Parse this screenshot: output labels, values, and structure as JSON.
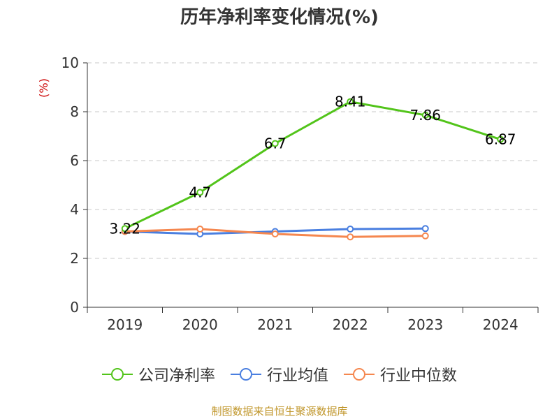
{
  "chart_data": {
    "type": "line",
    "title": "历年净利率变化情况(%)",
    "ylabel": "(%)",
    "xlabel": "",
    "ylim": [
      0,
      10
    ],
    "yticks": [
      0,
      2,
      4,
      6,
      8,
      10
    ],
    "categories": [
      "2019",
      "2020",
      "2021",
      "2022",
      "2023",
      "2024"
    ],
    "series": [
      {
        "name": "公司净利率",
        "color": "#52c41a",
        "values": [
          3.22,
          4.7,
          6.7,
          8.41,
          7.86,
          6.87
        ],
        "labels": [
          "3.22",
          "4.7",
          "6.7",
          "8.41",
          "7.86",
          "6.87"
        ]
      },
      {
        "name": "行业均值",
        "color": "#4a7fe0",
        "values": [
          3.1,
          3.0,
          3.1,
          3.2,
          3.22,
          null
        ]
      },
      {
        "name": "行业中位数",
        "color": "#f5874f",
        "values": [
          3.1,
          3.2,
          3.0,
          2.88,
          2.92,
          null
        ]
      }
    ],
    "grid": true,
    "legend_position": "bottom"
  },
  "source": "制图数据来自恒生聚源数据库"
}
